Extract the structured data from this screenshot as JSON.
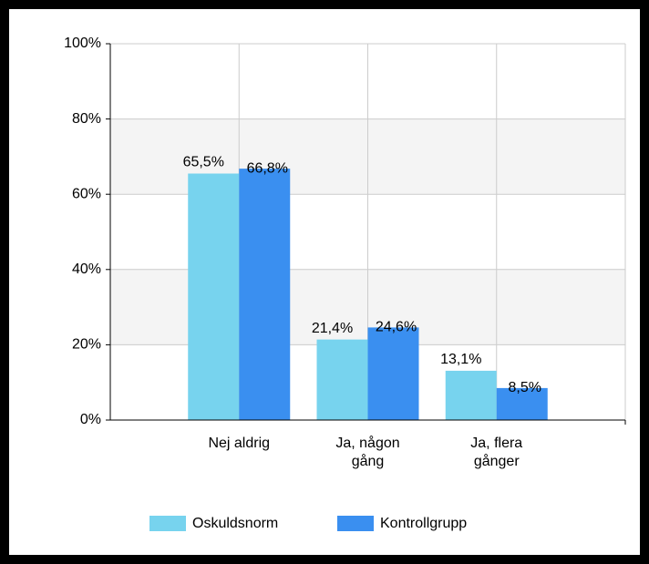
{
  "chart_data": {
    "type": "bar",
    "categories": [
      "Nej aldrig",
      "Ja, någon gång",
      "Ja, flera gånger"
    ],
    "series": [
      {
        "name": "Oskuldsnorm",
        "color": "#77d3ee",
        "values": [
          65.5,
          21.4,
          13.1
        ],
        "value_labels": [
          "65,5%",
          "21,4%",
          "13,1%"
        ]
      },
      {
        "name": "Kontrollgrupp",
        "color": "#3a8ff0",
        "values": [
          66.8,
          24.6,
          8.5
        ],
        "value_labels": [
          "66,8%",
          "24,6%",
          "8,5%"
        ]
      }
    ],
    "ylim": [
      0,
      100
    ],
    "yticks": [
      {
        "value": 0,
        "label": "0%"
      },
      {
        "value": 20,
        "label": "20%"
      },
      {
        "value": 40,
        "label": "40%"
      },
      {
        "value": 60,
        "label": "60%"
      },
      {
        "value": 80,
        "label": "80%"
      },
      {
        "value": 100,
        "label": "100%"
      }
    ],
    "grid": true,
    "legend": "bottom"
  }
}
